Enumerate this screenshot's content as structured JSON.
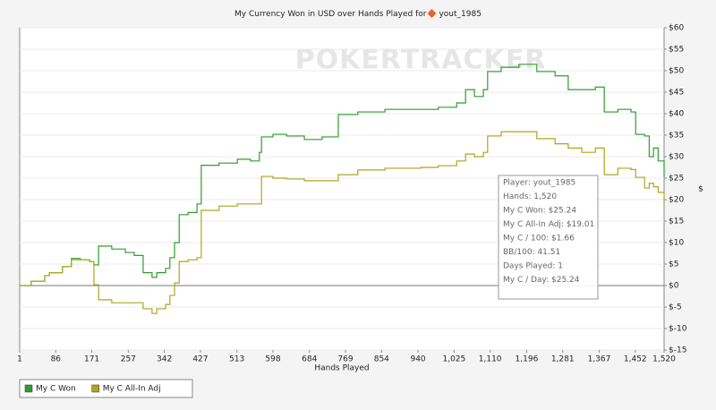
{
  "chart_data": {
    "type": "step-line",
    "title": "My Currency Won in USD over Hands Played for",
    "title_player": "yout_1985",
    "watermark": "POKERTRACKER",
    "x_label": "Hands Played",
    "y_label": "$",
    "xlim": [
      1,
      1520
    ],
    "ylim": [
      -15,
      60
    ],
    "grid": true,
    "legend": "bottom-left",
    "xticks": [
      1,
      86,
      171,
      257,
      342,
      427,
      513,
      598,
      684,
      769,
      854,
      940,
      {
        "value": 1025,
        "label": "1,025"
      },
      {
        "value": 1110,
        "label": "1,110"
      },
      {
        "value": 1196,
        "label": "1,196"
      },
      {
        "value": 1281,
        "label": "1,281"
      },
      {
        "value": 1367,
        "label": "1,367"
      },
      {
        "value": 1452,
        "label": "1,452"
      },
      {
        "value": 1520,
        "label": "1,520"
      }
    ],
    "yticks": [
      {
        "value": -15,
        "label": "$-15"
      },
      {
        "value": -10,
        "label": "$-10"
      },
      {
        "value": -5,
        "label": "$-5"
      },
      {
        "value": 0,
        "label": "$0"
      },
      {
        "value": 5,
        "label": "$5"
      },
      {
        "value": 10,
        "label": "$10"
      },
      {
        "value": 15,
        "label": "$15"
      },
      {
        "value": 20,
        "label": "$20"
      },
      {
        "value": 25,
        "label": "$25"
      },
      {
        "value": 30,
        "label": "$30"
      },
      {
        "value": 35,
        "label": "$35"
      },
      {
        "value": 40,
        "label": "$40"
      },
      {
        "value": 45,
        "label": "$45"
      },
      {
        "value": 50,
        "label": "$50"
      },
      {
        "value": 55,
        "label": "$55"
      },
      {
        "value": 60,
        "label": "$60"
      }
    ],
    "x": [
      1,
      28,
      60,
      71,
      102,
      123,
      144,
      166,
      176,
      187,
      218,
      250,
      271,
      292,
      313,
      324,
      345,
      355,
      366,
      377,
      398,
      419,
      429,
      471,
      514,
      545,
      566,
      571,
      598,
      630,
      672,
      714,
      752,
      798,
      862,
      946,
      988,
      1031,
      1052,
      1073,
      1094,
      1104,
      1136,
      1178,
      1220,
      1263,
      1294,
      1326,
      1358,
      1379,
      1411,
      1442,
      1453,
      1474,
      1485,
      1495,
      1506,
      1520
    ],
    "series": [
      {
        "name": "My C Won",
        "color": "#2e9e2e",
        "values": [
          0,
          1,
          2.3,
          3,
          4.4,
          6.3,
          6,
          5.6,
          4.8,
          9.2,
          8.5,
          7.7,
          7,
          3,
          1.9,
          3,
          4,
          6.5,
          10,
          16.5,
          17,
          19,
          28,
          28.5,
          29.4,
          29,
          31,
          34.6,
          35.2,
          34.8,
          34,
          34.6,
          39.8,
          40.4,
          41,
          41,
          41.5,
          42.5,
          45.6,
          44,
          45.6,
          49.8,
          50.8,
          51.5,
          49.8,
          48.8,
          45.6,
          45.6,
          46.2,
          40.4,
          41,
          40.4,
          35.2,
          34.8,
          30,
          32,
          29,
          25.24
        ]
      },
      {
        "name": "My C All-In Adj",
        "color": "#a8a81e",
        "values": [
          0,
          1,
          2.3,
          3,
          4.4,
          6,
          6,
          5.6,
          0.2,
          -3.3,
          -4,
          -4,
          -4,
          -5.4,
          -6.5,
          -5.4,
          -4.4,
          -2.3,
          0.6,
          5.6,
          6,
          6.5,
          17.5,
          18.5,
          19,
          19,
          19,
          25.4,
          25,
          24.8,
          24.4,
          24.4,
          25.8,
          26.9,
          27.3,
          27.5,
          27.9,
          29,
          30.6,
          30,
          31,
          34.8,
          35.8,
          35.8,
          34.2,
          33,
          32,
          31,
          32,
          25.8,
          27.3,
          27,
          25.2,
          22.7,
          23.8,
          23,
          21.7,
          19.01
        ]
      }
    ],
    "tooltip": [
      "Player: yout_1985",
      "Hands: 1,520",
      "My C Won: $25.24",
      "My C All-In Adj: $19.01",
      "My C / 100: $1.66",
      "BB/100: 41.51",
      "Days Played: 1",
      "My C / Day: $25.24"
    ]
  }
}
